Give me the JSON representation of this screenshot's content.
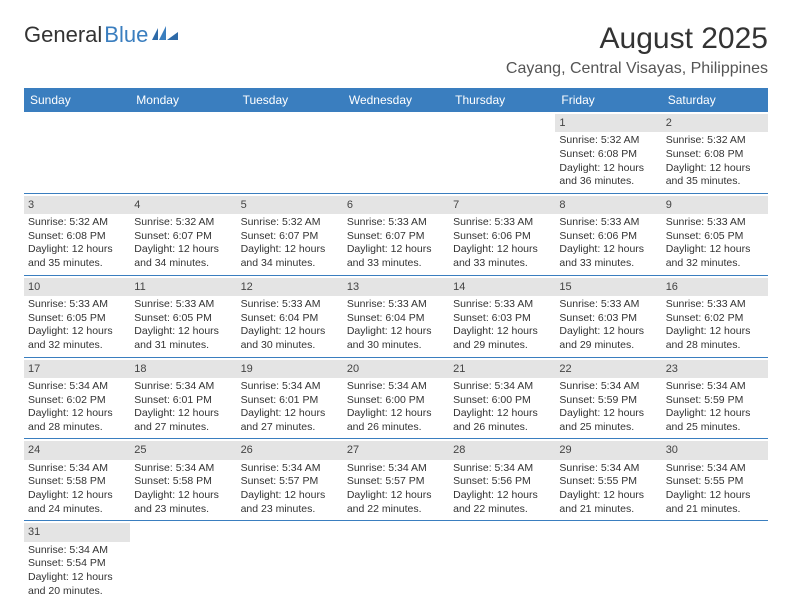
{
  "logo": {
    "text1": "General",
    "text2": "Blue"
  },
  "title": "August 2025",
  "location": "Cayang, Central Visayas, Philippines",
  "colors": {
    "header_bg": "#3a7ebf",
    "header_text": "#ffffff",
    "daynum_bg": "#e4e4e4",
    "row_border": "#3a7ebf",
    "body_text": "#333333",
    "page_bg": "#ffffff"
  },
  "day_headers": [
    "Sunday",
    "Monday",
    "Tuesday",
    "Wednesday",
    "Thursday",
    "Friday",
    "Saturday"
  ],
  "weeks": [
    [
      null,
      null,
      null,
      null,
      null,
      {
        "n": "1",
        "sunrise": "5:32 AM",
        "sunset": "6:08 PM",
        "dl_h": "12",
        "dl_m": "36"
      },
      {
        "n": "2",
        "sunrise": "5:32 AM",
        "sunset": "6:08 PM",
        "dl_h": "12",
        "dl_m": "35"
      }
    ],
    [
      {
        "n": "3",
        "sunrise": "5:32 AM",
        "sunset": "6:08 PM",
        "dl_h": "12",
        "dl_m": "35"
      },
      {
        "n": "4",
        "sunrise": "5:32 AM",
        "sunset": "6:07 PM",
        "dl_h": "12",
        "dl_m": "34"
      },
      {
        "n": "5",
        "sunrise": "5:32 AM",
        "sunset": "6:07 PM",
        "dl_h": "12",
        "dl_m": "34"
      },
      {
        "n": "6",
        "sunrise": "5:33 AM",
        "sunset": "6:07 PM",
        "dl_h": "12",
        "dl_m": "33"
      },
      {
        "n": "7",
        "sunrise": "5:33 AM",
        "sunset": "6:06 PM",
        "dl_h": "12",
        "dl_m": "33"
      },
      {
        "n": "8",
        "sunrise": "5:33 AM",
        "sunset": "6:06 PM",
        "dl_h": "12",
        "dl_m": "33"
      },
      {
        "n": "9",
        "sunrise": "5:33 AM",
        "sunset": "6:05 PM",
        "dl_h": "12",
        "dl_m": "32"
      }
    ],
    [
      {
        "n": "10",
        "sunrise": "5:33 AM",
        "sunset": "6:05 PM",
        "dl_h": "12",
        "dl_m": "32"
      },
      {
        "n": "11",
        "sunrise": "5:33 AM",
        "sunset": "6:05 PM",
        "dl_h": "12",
        "dl_m": "31"
      },
      {
        "n": "12",
        "sunrise": "5:33 AM",
        "sunset": "6:04 PM",
        "dl_h": "12",
        "dl_m": "30"
      },
      {
        "n": "13",
        "sunrise": "5:33 AM",
        "sunset": "6:04 PM",
        "dl_h": "12",
        "dl_m": "30"
      },
      {
        "n": "14",
        "sunrise": "5:33 AM",
        "sunset": "6:03 PM",
        "dl_h": "12",
        "dl_m": "29"
      },
      {
        "n": "15",
        "sunrise": "5:33 AM",
        "sunset": "6:03 PM",
        "dl_h": "12",
        "dl_m": "29"
      },
      {
        "n": "16",
        "sunrise": "5:33 AM",
        "sunset": "6:02 PM",
        "dl_h": "12",
        "dl_m": "28"
      }
    ],
    [
      {
        "n": "17",
        "sunrise": "5:34 AM",
        "sunset": "6:02 PM",
        "dl_h": "12",
        "dl_m": "28"
      },
      {
        "n": "18",
        "sunrise": "5:34 AM",
        "sunset": "6:01 PM",
        "dl_h": "12",
        "dl_m": "27"
      },
      {
        "n": "19",
        "sunrise": "5:34 AM",
        "sunset": "6:01 PM",
        "dl_h": "12",
        "dl_m": "27"
      },
      {
        "n": "20",
        "sunrise": "5:34 AM",
        "sunset": "6:00 PM",
        "dl_h": "12",
        "dl_m": "26"
      },
      {
        "n": "21",
        "sunrise": "5:34 AM",
        "sunset": "6:00 PM",
        "dl_h": "12",
        "dl_m": "26"
      },
      {
        "n": "22",
        "sunrise": "5:34 AM",
        "sunset": "5:59 PM",
        "dl_h": "12",
        "dl_m": "25"
      },
      {
        "n": "23",
        "sunrise": "5:34 AM",
        "sunset": "5:59 PM",
        "dl_h": "12",
        "dl_m": "25"
      }
    ],
    [
      {
        "n": "24",
        "sunrise": "5:34 AM",
        "sunset": "5:58 PM",
        "dl_h": "12",
        "dl_m": "24"
      },
      {
        "n": "25",
        "sunrise": "5:34 AM",
        "sunset": "5:58 PM",
        "dl_h": "12",
        "dl_m": "23"
      },
      {
        "n": "26",
        "sunrise": "5:34 AM",
        "sunset": "5:57 PM",
        "dl_h": "12",
        "dl_m": "23"
      },
      {
        "n": "27",
        "sunrise": "5:34 AM",
        "sunset": "5:57 PM",
        "dl_h": "12",
        "dl_m": "22"
      },
      {
        "n": "28",
        "sunrise": "5:34 AM",
        "sunset": "5:56 PM",
        "dl_h": "12",
        "dl_m": "22"
      },
      {
        "n": "29",
        "sunrise": "5:34 AM",
        "sunset": "5:55 PM",
        "dl_h": "12",
        "dl_m": "21"
      },
      {
        "n": "30",
        "sunrise": "5:34 AM",
        "sunset": "5:55 PM",
        "dl_h": "12",
        "dl_m": "21"
      }
    ],
    [
      {
        "n": "31",
        "sunrise": "5:34 AM",
        "sunset": "5:54 PM",
        "dl_h": "12",
        "dl_m": "20"
      },
      null,
      null,
      null,
      null,
      null,
      null
    ]
  ],
  "labels": {
    "sunrise_prefix": "Sunrise: ",
    "sunset_prefix": "Sunset: ",
    "daylight_prefix": "Daylight: ",
    "hours_word": " hours",
    "and_word": "and ",
    "minutes_word": " minutes."
  }
}
